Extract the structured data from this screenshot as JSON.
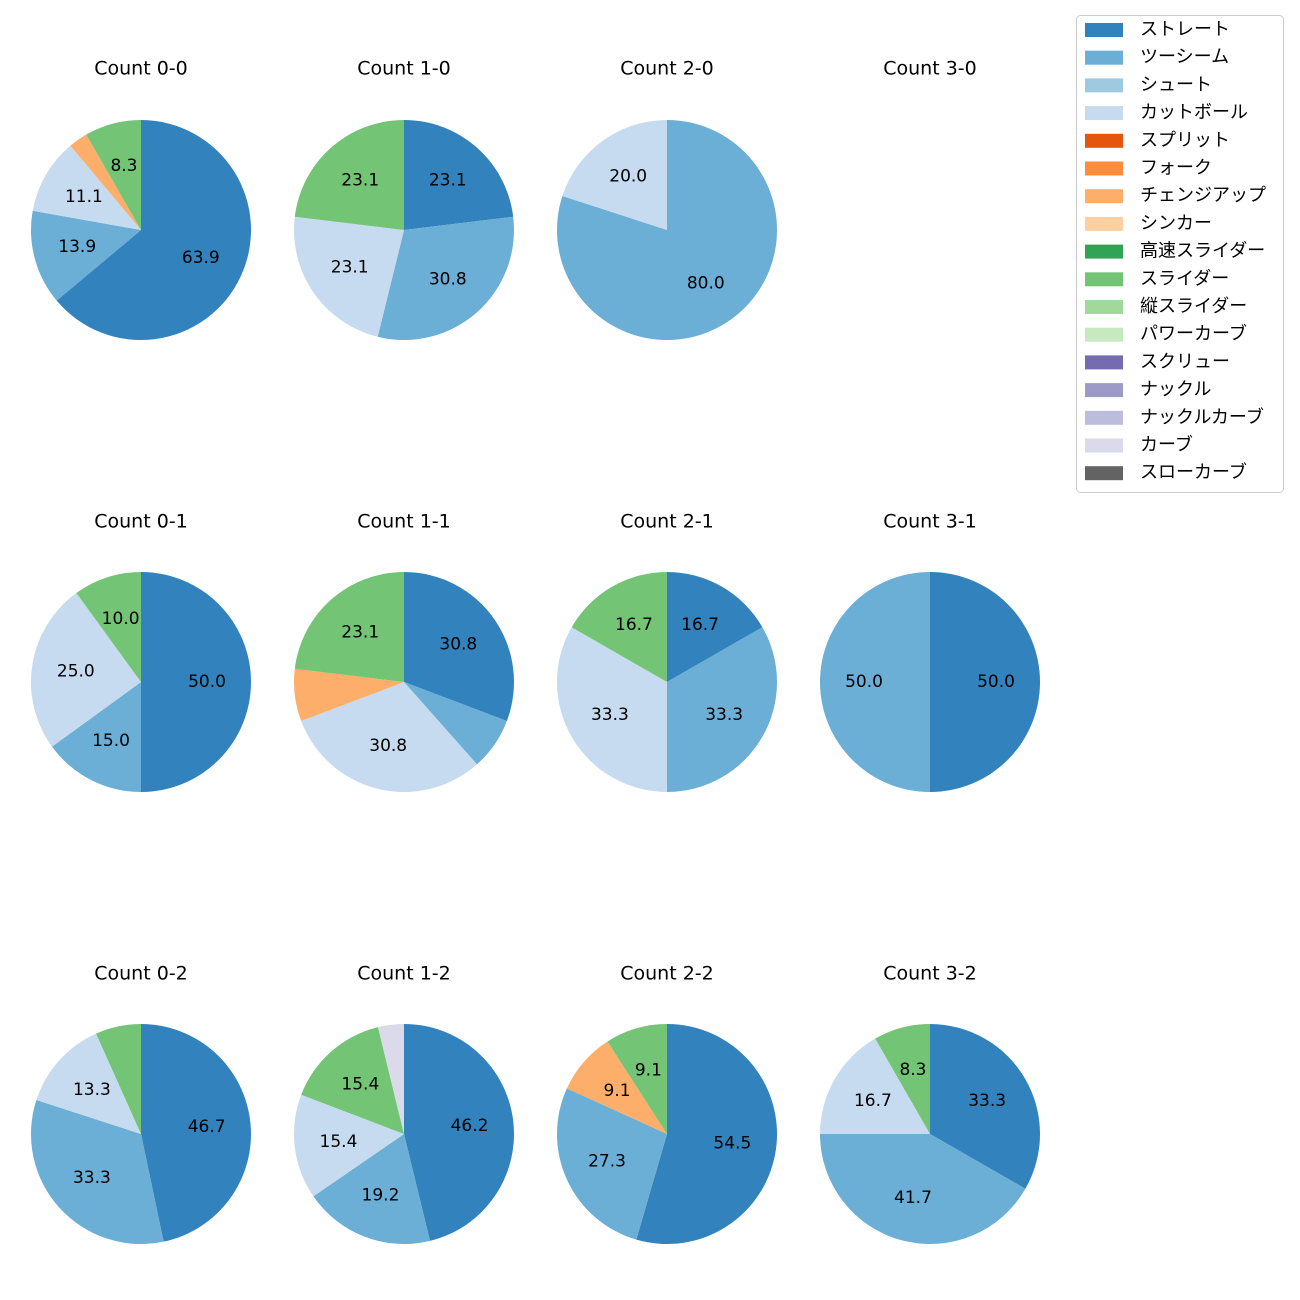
{
  "colors": {
    "ストレート": "#3182bd",
    "ツーシーム": "#6baed6",
    "シュート": "#9ecae1",
    "カットボール": "#c6dbef",
    "スプリット": "#e6550d",
    "フォーク": "#fd8d3c",
    "チェンジアップ": "#fdae6b",
    "シンカー": "#fdd0a2",
    "高速スライダー": "#31a354",
    "スライダー": "#74c476",
    "縦スライダー": "#a1d99b",
    "パワーカーブ": "#c7e9c0",
    "スクリュー": "#756bb1",
    "ナックル": "#9e9ac8",
    "ナックルカーブ": "#bcbddc",
    "カーブ": "#dadaeb",
    "スローカーブ": "#636363"
  },
  "legend": [
    "ストレート",
    "ツーシーム",
    "シュート",
    "カットボール",
    "スプリット",
    "フォーク",
    "チェンジアップ",
    "シンカー",
    "高速スライダー",
    "スライダー",
    "縦スライダー",
    "パワーカーブ",
    "スクリュー",
    "ナックル",
    "ナックルカーブ",
    "カーブ",
    "スローカーブ"
  ],
  "chart_data": [
    {
      "type": "pie",
      "title": "Count 0-0",
      "slices": [
        {
          "pitch": "ストレート",
          "value": 63.9,
          "label": "63.9"
        },
        {
          "pitch": "ツーシーム",
          "value": 13.9,
          "label": "13.9"
        },
        {
          "pitch": "カットボール",
          "value": 11.1,
          "label": "11.1"
        },
        {
          "pitch": "チェンジアップ",
          "value": 2.8,
          "label": ""
        },
        {
          "pitch": "スライダー",
          "value": 8.3,
          "label": "8.3"
        }
      ]
    },
    {
      "type": "pie",
      "title": "Count 1-0",
      "slices": [
        {
          "pitch": "ストレート",
          "value": 23.1,
          "label": "23.1"
        },
        {
          "pitch": "ツーシーム",
          "value": 30.8,
          "label": "30.8"
        },
        {
          "pitch": "カットボール",
          "value": 23.1,
          "label": "23.1"
        },
        {
          "pitch": "スライダー",
          "value": 23.1,
          "label": "23.1"
        }
      ]
    },
    {
      "type": "pie",
      "title": "Count 2-0",
      "slices": [
        {
          "pitch": "ツーシーム",
          "value": 80.0,
          "label": "80.0"
        },
        {
          "pitch": "カットボール",
          "value": 20.0,
          "label": "20.0"
        }
      ]
    },
    {
      "type": "pie",
      "title": "Count 3-0",
      "slices": []
    },
    {
      "type": "pie",
      "title": "Count 0-1",
      "slices": [
        {
          "pitch": "ストレート",
          "value": 50.0,
          "label": "50.0"
        },
        {
          "pitch": "ツーシーム",
          "value": 15.0,
          "label": "15.0"
        },
        {
          "pitch": "カットボール",
          "value": 25.0,
          "label": "25.0"
        },
        {
          "pitch": "スライダー",
          "value": 10.0,
          "label": "10.0"
        }
      ]
    },
    {
      "type": "pie",
      "title": "Count 1-1",
      "slices": [
        {
          "pitch": "ストレート",
          "value": 30.8,
          "label": "30.8"
        },
        {
          "pitch": "ツーシーム",
          "value": 7.7,
          "label": ""
        },
        {
          "pitch": "カットボール",
          "value": 30.8,
          "label": "30.8"
        },
        {
          "pitch": "チェンジアップ",
          "value": 7.7,
          "label": ""
        },
        {
          "pitch": "スライダー",
          "value": 23.1,
          "label": "23.1"
        }
      ]
    },
    {
      "type": "pie",
      "title": "Count 2-1",
      "slices": [
        {
          "pitch": "ストレート",
          "value": 16.7,
          "label": "16.7"
        },
        {
          "pitch": "ツーシーム",
          "value": 33.3,
          "label": "33.3"
        },
        {
          "pitch": "カットボール",
          "value": 33.3,
          "label": "33.3"
        },
        {
          "pitch": "スライダー",
          "value": 16.7,
          "label": "16.7"
        }
      ]
    },
    {
      "type": "pie",
      "title": "Count 3-1",
      "slices": [
        {
          "pitch": "ストレート",
          "value": 50.0,
          "label": "50.0"
        },
        {
          "pitch": "ツーシーム",
          "value": 50.0,
          "label": "50.0"
        }
      ]
    },
    {
      "type": "pie",
      "title": "Count 0-2",
      "slices": [
        {
          "pitch": "ストレート",
          "value": 46.7,
          "label": "46.7"
        },
        {
          "pitch": "ツーシーム",
          "value": 33.3,
          "label": "33.3"
        },
        {
          "pitch": "カットボール",
          "value": 13.3,
          "label": "13.3"
        },
        {
          "pitch": "スライダー",
          "value": 6.7,
          "label": ""
        }
      ]
    },
    {
      "type": "pie",
      "title": "Count 1-2",
      "slices": [
        {
          "pitch": "ストレート",
          "value": 46.2,
          "label": "46.2"
        },
        {
          "pitch": "ツーシーム",
          "value": 19.2,
          "label": "19.2"
        },
        {
          "pitch": "カットボール",
          "value": 15.4,
          "label": "15.4"
        },
        {
          "pitch": "スライダー",
          "value": 15.4,
          "label": "15.4"
        },
        {
          "pitch": "カーブ",
          "value": 3.8,
          "label": ""
        }
      ]
    },
    {
      "type": "pie",
      "title": "Count 2-2",
      "slices": [
        {
          "pitch": "ストレート",
          "value": 54.5,
          "label": "54.5"
        },
        {
          "pitch": "ツーシーム",
          "value": 27.3,
          "label": "27.3"
        },
        {
          "pitch": "チェンジアップ",
          "value": 9.1,
          "label": "9.1"
        },
        {
          "pitch": "スライダー",
          "value": 9.1,
          "label": "9.1"
        }
      ]
    },
    {
      "type": "pie",
      "title": "Count 3-2",
      "slices": [
        {
          "pitch": "ストレート",
          "value": 33.3,
          "label": "33.3"
        },
        {
          "pitch": "ツーシーム",
          "value": 41.7,
          "label": "41.7"
        },
        {
          "pitch": "カットボール",
          "value": 16.7,
          "label": "16.7"
        },
        {
          "pitch": "スライダー",
          "value": 8.3,
          "label": "8.3"
        }
      ]
    }
  ]
}
